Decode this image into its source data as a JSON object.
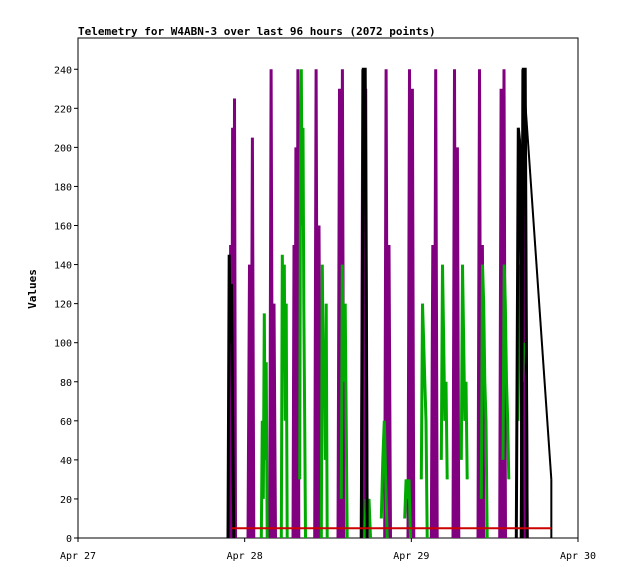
{
  "chart_data": {
    "type": "line",
    "title": "Telemetry for W4ABN-3 over last 96 hours (2072 points)",
    "xlabel": "",
    "ylabel": "Values",
    "ylim": [
      0,
      256
    ],
    "yticks": [
      0,
      20,
      40,
      60,
      80,
      100,
      120,
      140,
      160,
      180,
      200,
      220,
      240
    ],
    "xlim": [
      "Apr 27",
      "Apr 30"
    ],
    "xticks": [
      {
        "label": "Apr 27",
        "day": 0
      },
      {
        "label": "Apr 28",
        "day": 1
      },
      {
        "label": "Apr 29",
        "day": 2
      },
      {
        "label": "Apr 30",
        "day": 3
      }
    ],
    "grid": false,
    "legend": "none",
    "series": [
      {
        "color": "#800080",
        "pulses": [
          {
            "day": 0.91,
            "values": [
              0,
              150,
              0,
              210,
              0,
              225,
              0
            ]
          },
          {
            "day": 1.02,
            "values": [
              0,
              140,
              0,
              205,
              0
            ]
          },
          {
            "day": 1.15,
            "values": [
              0,
              240,
              0,
              120,
              0
            ]
          },
          {
            "day": 1.29,
            "values": [
              0,
              150,
              0,
              200,
              0,
              240,
              0
            ]
          },
          {
            "day": 1.42,
            "values": [
              0,
              240,
              0,
              160,
              0
            ]
          },
          {
            "day": 1.56,
            "values": [
              0,
              230,
              0,
              240,
              0
            ]
          },
          {
            "day": 1.7,
            "values": [
              0,
              240,
              0,
              230,
              0
            ]
          },
          {
            "day": 1.84,
            "values": [
              0,
              240,
              0,
              150,
              0
            ]
          },
          {
            "day": 1.98,
            "values": [
              0,
              240,
              0,
              230,
              0
            ]
          },
          {
            "day": 2.12,
            "values": [
              0,
              150,
              0,
              240,
              0
            ]
          },
          {
            "day": 2.25,
            "values": [
              0,
              240,
              0,
              200,
              0
            ]
          },
          {
            "day": 2.4,
            "values": [
              0,
              240,
              0,
              150,
              0
            ]
          },
          {
            "day": 2.53,
            "values": [
              0,
              230,
              0,
              240,
              0
            ]
          },
          {
            "day": 2.66,
            "values": [
              0,
              240,
              0,
              150,
              0
            ]
          }
        ]
      },
      {
        "color": "#00aa00",
        "pulses": [
          {
            "day": 1.1,
            "values": [
              0,
              60,
              20,
              115,
              40,
              90,
              0
            ]
          },
          {
            "day": 1.22,
            "values": [
              0,
              145,
              100,
              140,
              60,
              120,
              0
            ]
          },
          {
            "day": 1.33,
            "values": [
              30,
              190,
              240,
              160,
              210,
              120,
              60,
              0
            ]
          },
          {
            "day": 1.46,
            "values": [
              0,
              140,
              80,
              100,
              40,
              120,
              0
            ]
          },
          {
            "day": 1.58,
            "values": [
              20,
              140,
              100,
              80,
              120,
              60,
              0
            ]
          },
          {
            "day": 1.72,
            "values": [
              0,
              20,
              10,
              20,
              0
            ]
          },
          {
            "day": 1.82,
            "values": [
              10,
              40,
              60,
              30,
              0
            ]
          },
          {
            "day": 1.96,
            "values": [
              10,
              30,
              20,
              30,
              0
            ]
          },
          {
            "day": 2.06,
            "values": [
              30,
              120,
              100,
              80,
              60,
              0
            ]
          },
          {
            "day": 2.18,
            "values": [
              40,
              140,
              100,
              60,
              80,
              30
            ]
          },
          {
            "day": 2.3,
            "values": [
              40,
              140,
              100,
              60,
              80,
              30
            ]
          },
          {
            "day": 2.42,
            "values": [
              20,
              140,
              120,
              80,
              60,
              0
            ]
          },
          {
            "day": 2.55,
            "values": [
              40,
              140,
              120,
              80,
              60,
              30
            ]
          },
          {
            "day": 2.64,
            "values": [
              60,
              140,
              120,
              80,
              100
            ]
          }
        ]
      },
      {
        "color": "#000000",
        "pulses": [
          {
            "day": 0.9,
            "values": [
              0,
              145,
              100,
              130,
              60,
              0
            ]
          },
          {
            "day": 1.7,
            "values": [
              0,
              240,
              240,
              0
            ]
          },
          {
            "day": 2.63,
            "values": [
              0,
              210,
              200,
              0
            ]
          },
          {
            "day": 2.66,
            "values": [
              0,
              240,
              240,
              0
            ]
          }
        ],
        "ramp": {
          "from": {
            "day": 2.67,
            "value": 240
          },
          "to": {
            "day": 2.84,
            "value": 30
          }
        }
      },
      {
        "color": "#cc0000",
        "flat": {
          "from_day": 0.92,
          "to_day": 2.84,
          "value": 5
        }
      }
    ]
  }
}
